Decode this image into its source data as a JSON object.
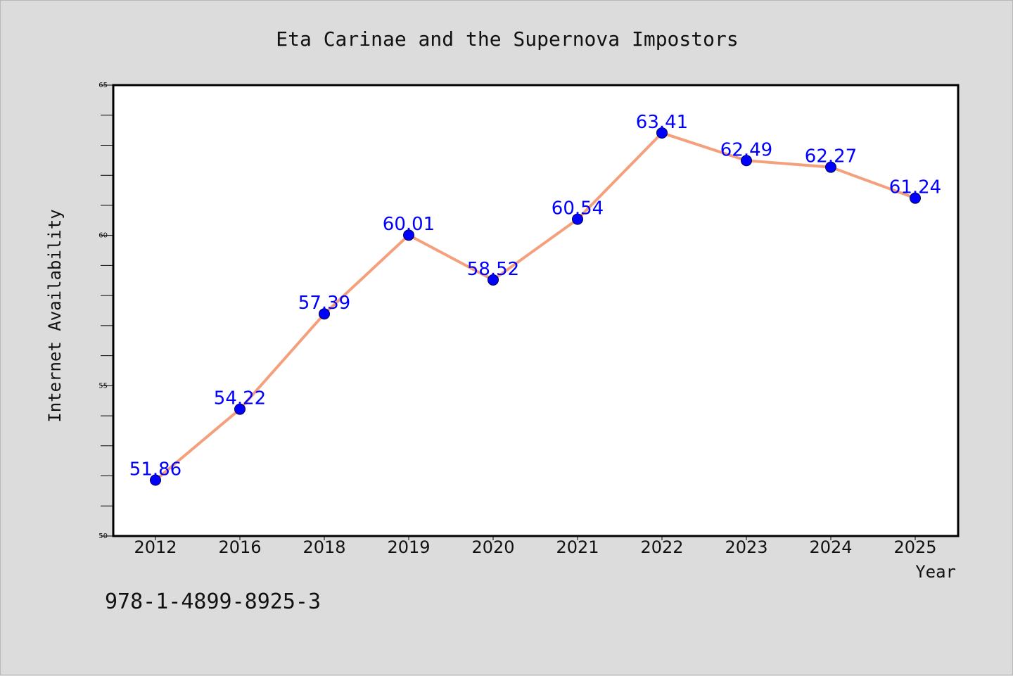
{
  "chart_data": {
    "type": "line",
    "title": "Eta Carinae and the Supernova Impostors",
    "xlabel": "Year",
    "ylabel": "Internet Availability",
    "categories": [
      "2012",
      "2016",
      "2018",
      "2019",
      "2020",
      "2021",
      "2022",
      "2023",
      "2024",
      "2025"
    ],
    "series": [
      {
        "values": [
          51.86,
          54.22,
          57.39,
          60.01,
          58.52,
          60.54,
          63.41,
          62.49,
          62.27,
          61.24
        ]
      }
    ],
    "data_labels": [
      "51.86",
      "54.22",
      "57.39",
      "60.01",
      "58.52",
      "60.54",
      "63.41",
      "62.49",
      "62.27",
      "61.24"
    ],
    "ylim": [
      50,
      65
    ],
    "y_ticks": [
      "50",
      "55",
      "60",
      "65"
    ],
    "y_minor_step": 1,
    "grid": false,
    "legend": "none",
    "colors": {
      "line": "#f4a07c",
      "marker": "#0000ff",
      "label": "#0000ff",
      "background": "#dcdcdc",
      "plot_background": "#ffffff"
    }
  },
  "footer_note": "978-1-4899-8925-3"
}
